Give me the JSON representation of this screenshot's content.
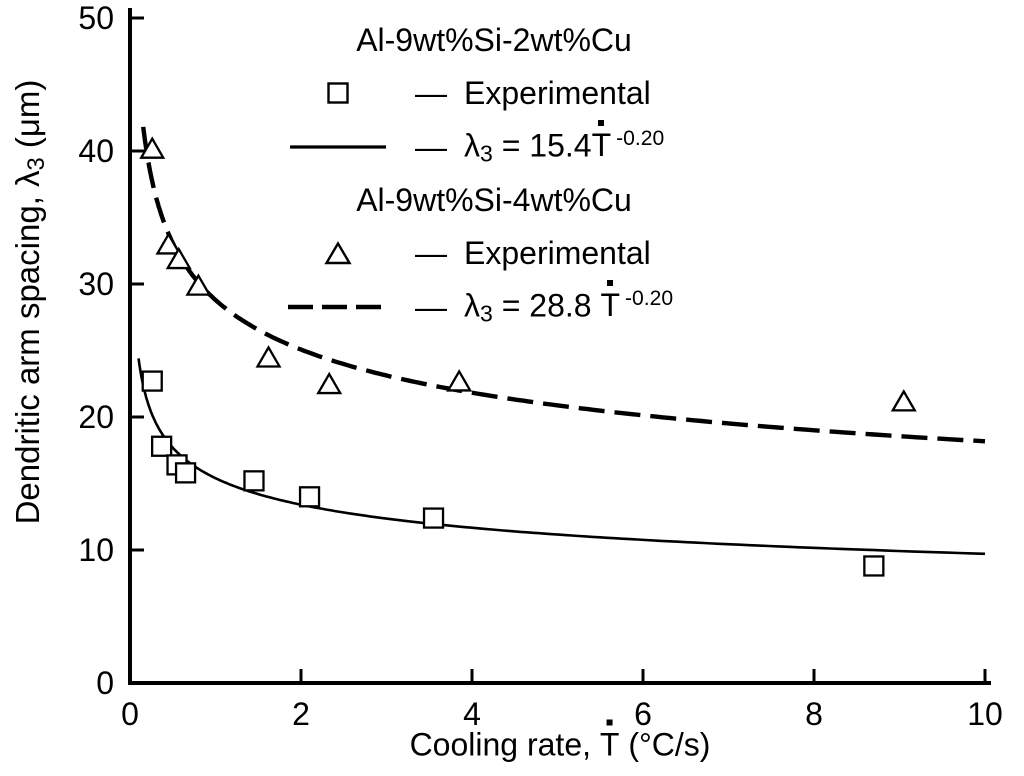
{
  "chart_data": {
    "type": "scatter",
    "title": "",
    "xlabel": "Cooling rate, Ṫ (°C/s)",
    "ylabel": "Dendritic arm spacing, λ3 (μm)",
    "xlim": [
      0,
      10
    ],
    "ylim": [
      0,
      50
    ],
    "xticks": [
      0,
      2,
      4,
      6,
      8,
      10
    ],
    "yticks": [
      0,
      10,
      20,
      30,
      40,
      50
    ],
    "grid": false,
    "legend_position": "top-center-inside",
    "series": [
      {
        "name": "Al-9wt%Si-2wt%Cu",
        "marker": "square",
        "label": "Experimental",
        "points": [
          [
            0.26,
            22.7
          ],
          [
            0.37,
            17.8
          ],
          [
            0.55,
            16.4
          ],
          [
            0.65,
            15.8
          ],
          [
            1.45,
            15.2
          ],
          [
            2.1,
            14.0
          ],
          [
            3.55,
            12.4
          ],
          [
            8.7,
            8.8
          ]
        ],
        "fit": {
          "equation": "λ3 = 15.4·Ṫ^-0.20",
          "coefficient": 15.4,
          "exponent": -0.2,
          "style": "solid",
          "x_start": 0.1
        }
      },
      {
        "name": "Al-9wt%Si-4wt%Cu",
        "marker": "triangle",
        "label": "Experimental",
        "points": [
          [
            0.26,
            40.1
          ],
          [
            0.45,
            32.9
          ],
          [
            0.57,
            31.8
          ],
          [
            0.8,
            29.8
          ],
          [
            1.62,
            24.4
          ],
          [
            2.33,
            22.4
          ],
          [
            3.85,
            22.6
          ],
          [
            9.05,
            21.1
          ]
        ],
        "fit": {
          "equation": "λ3 = 28.8·Ṫ^-0.20",
          "coefficient": 28.8,
          "exponent": -0.2,
          "style": "dashed",
          "x_start": 0.155
        }
      }
    ]
  },
  "axis_labels": {
    "x_prefix": "Cooling rate, ",
    "x_T": "T",
    "x_suffix": " (°C/s)",
    "y_prefix": "Dendritic arm spacing, ",
    "y_lambda": "λ",
    "y_sub": "3",
    "y_suffix": " (μm)"
  },
  "legend": {
    "separator": "—",
    "groups": [
      {
        "title": "Al-9wt%Si-2wt%Cu",
        "experimental_label": "Experimental",
        "marker": "square",
        "line_style": "solid",
        "fit_lambda": "λ",
        "fit_sub": "3",
        "fit_equals": " = ",
        "fit_coefficient": "15.4",
        "fit_T": "T",
        "fit_exponent": "-0.20"
      },
      {
        "title": "Al-9wt%Si-4wt%Cu",
        "experimental_label": "Experimental",
        "marker": "triangle",
        "line_style": "dashed",
        "fit_lambda": "λ",
        "fit_sub": "3",
        "fit_equals": " = ",
        "fit_coefficient": "28.8 ",
        "fit_T": "T",
        "fit_exponent": "-0.20"
      }
    ]
  }
}
